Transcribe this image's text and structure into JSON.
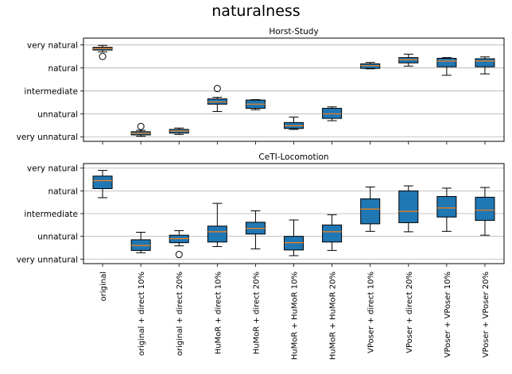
{
  "figure": {
    "title": "naturalness"
  },
  "chart_data": [
    {
      "type": "box",
      "title": "Horst-Study",
      "y_ticks": [
        {
          "value": 1,
          "label": "very unnatural"
        },
        {
          "value": 2,
          "label": "unnatural"
        },
        {
          "value": 3,
          "label": "intermediate"
        },
        {
          "value": 4,
          "label": "natural"
        },
        {
          "value": 5,
          "label": "very natural"
        }
      ],
      "ylim": [
        0.8,
        5.3
      ],
      "grid": "horizontal",
      "box_color": "#1f77b4",
      "median_color": "#ff7f0e",
      "categories": [
        "original",
        "original + direct 10%",
        "original + direct 20%",
        "HuMoR + direct 10%",
        "HuMoR + direct 20%",
        "HuMoR + HuMoR 10%",
        "HuMoR + HuMoR 20%",
        "VPoser + direct 10%",
        "VPoser + direct 20%",
        "VPoser + VPoser 10%",
        "VPoser + VPoser 20%"
      ],
      "boxes": [
        {
          "whislo": 4.7,
          "q1": 4.78,
          "med": 4.85,
          "q3": 4.9,
          "whishi": 4.98,
          "fliers": [
            4.5
          ]
        },
        {
          "whislo": 1.02,
          "q1": 1.08,
          "med": 1.15,
          "q3": 1.22,
          "whishi": 1.28,
          "fliers": [
            1.45
          ]
        },
        {
          "whislo": 1.1,
          "q1": 1.16,
          "med": 1.25,
          "q3": 1.32,
          "whishi": 1.38,
          "fliers": []
        },
        {
          "whislo": 2.1,
          "q1": 2.42,
          "med": 2.52,
          "q3": 2.65,
          "whishi": 2.72,
          "fliers": [
            3.1
          ]
        },
        {
          "whislo": 2.18,
          "q1": 2.24,
          "med": 2.42,
          "q3": 2.6,
          "whishi": 2.62,
          "fliers": []
        },
        {
          "whislo": 1.32,
          "q1": 1.36,
          "med": 1.48,
          "q3": 1.62,
          "whishi": 1.86,
          "fliers": []
        },
        {
          "whislo": 1.7,
          "q1": 1.8,
          "med": 2.0,
          "q3": 2.24,
          "whishi": 2.3,
          "fliers": []
        },
        {
          "whislo": 3.96,
          "q1": 3.98,
          "med": 4.1,
          "q3": 4.18,
          "whishi": 4.24,
          "fliers": []
        },
        {
          "whislo": 4.08,
          "q1": 4.22,
          "med": 4.36,
          "q3": 4.45,
          "whishi": 4.6,
          "fliers": []
        },
        {
          "whislo": 3.68,
          "q1": 4.05,
          "med": 4.3,
          "q3": 4.42,
          "whishi": 4.45,
          "fliers": []
        },
        {
          "whislo": 3.74,
          "q1": 4.05,
          "med": 4.3,
          "q3": 4.4,
          "whishi": 4.48,
          "fliers": []
        }
      ]
    },
    {
      "type": "box",
      "title": "CeTI-Locomotion",
      "y_ticks": [
        {
          "value": 1,
          "label": "very unnatural"
        },
        {
          "value": 2,
          "label": "unnatural"
        },
        {
          "value": 3,
          "label": "intermediate"
        },
        {
          "value": 4,
          "label": "natural"
        },
        {
          "value": 5,
          "label": "very natural"
        }
      ],
      "ylim": [
        0.8,
        5.2
      ],
      "grid": "horizontal",
      "box_color": "#1f77b4",
      "median_color": "#ff7f0e",
      "categories": [
        "original",
        "original + direct 10%",
        "original + direct 20%",
        "HuMoR + direct 10%",
        "HuMoR + direct 20%",
        "HuMoR + HuMoR 10%",
        "HuMoR + HuMoR 20%",
        "VPoser + direct 10%",
        "VPoser + direct 20%",
        "VPoser + VPoser 10%",
        "VPoser + VPoser 20%"
      ],
      "boxes": [
        {
          "whislo": 3.7,
          "q1": 4.1,
          "med": 4.45,
          "q3": 4.65,
          "whishi": 4.9,
          "fliers": []
        },
        {
          "whislo": 1.28,
          "q1": 1.38,
          "med": 1.6,
          "q3": 1.85,
          "whishi": 2.18,
          "fliers": []
        },
        {
          "whislo": 1.58,
          "q1": 1.72,
          "med": 1.9,
          "q3": 2.05,
          "whishi": 2.25,
          "fliers": [
            1.2
          ]
        },
        {
          "whislo": 1.55,
          "q1": 1.75,
          "med": 2.2,
          "q3": 2.45,
          "whishi": 3.45,
          "fliers": []
        },
        {
          "whislo": 1.45,
          "q1": 2.1,
          "med": 2.35,
          "q3": 2.62,
          "whishi": 3.12,
          "fliers": []
        },
        {
          "whislo": 1.15,
          "q1": 1.4,
          "med": 1.72,
          "q3": 2.0,
          "whishi": 2.72,
          "fliers": []
        },
        {
          "whislo": 1.38,
          "q1": 1.75,
          "med": 2.2,
          "q3": 2.5,
          "whishi": 2.95,
          "fliers": []
        },
        {
          "whislo": 2.22,
          "q1": 2.55,
          "med": 3.2,
          "q3": 3.65,
          "whishi": 4.17,
          "fliers": []
        },
        {
          "whislo": 2.2,
          "q1": 2.6,
          "med": 3.1,
          "q3": 4.0,
          "whishi": 4.22,
          "fliers": []
        },
        {
          "whislo": 2.22,
          "q1": 2.85,
          "med": 3.25,
          "q3": 3.75,
          "whishi": 4.12,
          "fliers": []
        },
        {
          "whislo": 2.05,
          "q1": 2.7,
          "med": 3.15,
          "q3": 3.72,
          "whishi": 4.15,
          "fliers": []
        }
      ]
    }
  ]
}
